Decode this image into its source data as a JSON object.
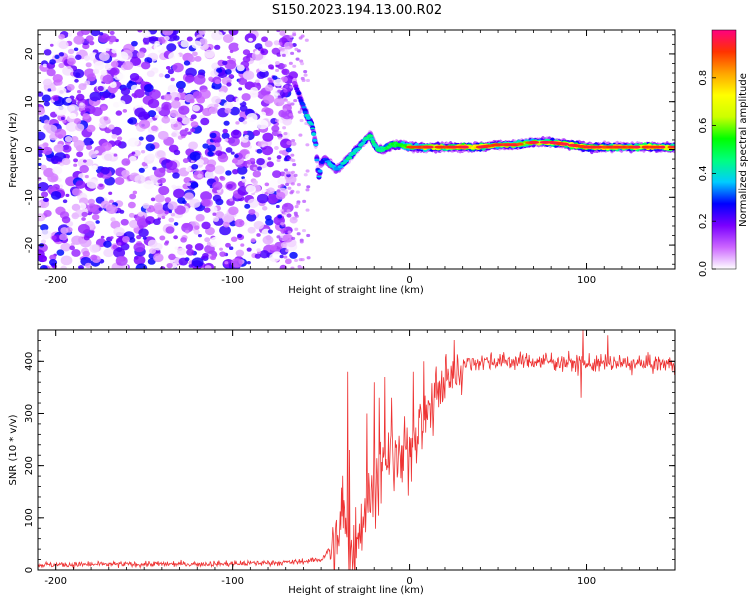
{
  "title": "S150.2023.194.13.00.R02",
  "chart_data": [
    {
      "type": "heatmap",
      "name": "spectrogram",
      "xlabel": "Height of straight line (km)",
      "ylabel": "Frequency (Hz)",
      "xlim": [
        -210,
        150
      ],
      "ylim": [
        -25,
        25
      ],
      "x_ticks": [
        -200,
        -100,
        0,
        100
      ],
      "y_ticks": [
        -20,
        -10,
        0,
        10,
        20
      ],
      "x_tick_labels": [
        "-200",
        "-100",
        "0",
        "100"
      ],
      "y_tick_labels": [
        "-20",
        "-10",
        "0",
        "10",
        "20"
      ],
      "noise_region_x": [
        -210,
        -65
      ],
      "signal_trace": {
        "x": [
          -65,
          -62,
          -58,
          -55,
          -53,
          -52,
          -51,
          -50,
          -48,
          -45,
          -42,
          -40,
          -38,
          -35,
          -30,
          -25,
          -22,
          -20,
          -18,
          -15,
          -10,
          -5,
          0,
          10,
          20,
          30,
          40,
          50,
          60,
          70,
          80,
          90,
          100,
          110,
          120,
          130,
          140,
          150
        ],
        "y": [
          14,
          11,
          7,
          5,
          1,
          -4,
          -6,
          -3,
          -2,
          -3,
          -4,
          -4,
          -3,
          -2,
          0,
          2,
          3,
          1,
          0,
          0,
          1,
          1,
          0.5,
          0.5,
          0.5,
          0.5,
          0.5,
          1,
          1,
          1.5,
          1.5,
          1,
          0.5,
          0.5,
          0.5,
          0.5,
          0.5,
          0.5
        ],
        "amplitude": [
          0.2,
          0.3,
          0.45,
          0.5,
          0.4,
          0.35,
          0.45,
          0.3,
          0.35,
          0.45,
          0.45,
          0.4,
          0.45,
          0.5,
          0.45,
          0.5,
          0.55,
          0.5,
          0.5,
          0.55,
          0.6,
          0.6,
          0.7,
          0.75,
          0.8,
          0.9,
          0.85,
          0.7,
          0.75,
          0.7,
          0.85,
          0.85,
          0.9,
          0.85,
          0.75,
          0.8,
          0.85,
          0.8
        ]
      },
      "colorbar": {
        "label": "Normalized spectral amplitude",
        "range": [
          0,
          1
        ],
        "ticks": [
          0.0,
          0.2,
          0.4,
          0.6,
          0.8
        ],
        "tick_labels": [
          "0.0",
          "0.2",
          "0.4",
          "0.6",
          "0.8"
        ],
        "colors": [
          "#ffffff",
          "#cc66ff",
          "#7a00ff",
          "#0000ff",
          "#00ccff",
          "#00ff80",
          "#00ff00",
          "#ccff00",
          "#ffff00",
          "#ffa500",
          "#ff3300",
          "#ff0080"
        ]
      }
    },
    {
      "type": "line",
      "name": "snr",
      "xlabel": "Height of straight line (km)",
      "ylabel": "SNR (10 * v/v)",
      "xlim": [
        -210,
        150
      ],
      "ylim": [
        0,
        460
      ],
      "x_ticks": [
        -200,
        -100,
        0,
        100
      ],
      "y_ticks": [
        0,
        100,
        200,
        300,
        400
      ],
      "x_tick_labels": [
        "-200",
        "-100",
        "0",
        "100"
      ],
      "y_tick_labels": [
        "0",
        "100",
        "200",
        "300",
        "400"
      ],
      "color": "#ee3333",
      "baseline_points": {
        "x": [
          -210,
          -100,
          -65,
          -50,
          -45,
          -40,
          -38,
          -35,
          -32,
          -30,
          -25,
          -20,
          -15,
          -10,
          -5,
          0,
          5,
          10,
          15,
          20,
          25,
          30,
          40,
          50,
          60,
          80,
          100,
          120,
          150
        ],
        "y": [
          10,
          12,
          15,
          20,
          40,
          60,
          120,
          40,
          20,
          70,
          120,
          160,
          190,
          220,
          200,
          230,
          280,
          300,
          330,
          360,
          380,
          395,
          400,
          400,
          400,
          400,
          395,
          395,
          395
        ]
      },
      "spikes": {
        "x": [
          -35,
          -34,
          -24,
          -20,
          -17,
          -14,
          -10,
          -3,
          2,
          8,
          15,
          97,
          98,
          112
        ],
        "y": [
          380,
          230,
          300,
          360,
          330,
          370,
          330,
          260,
          380,
          400,
          390,
          330,
          460,
          450
        ]
      }
    }
  ]
}
